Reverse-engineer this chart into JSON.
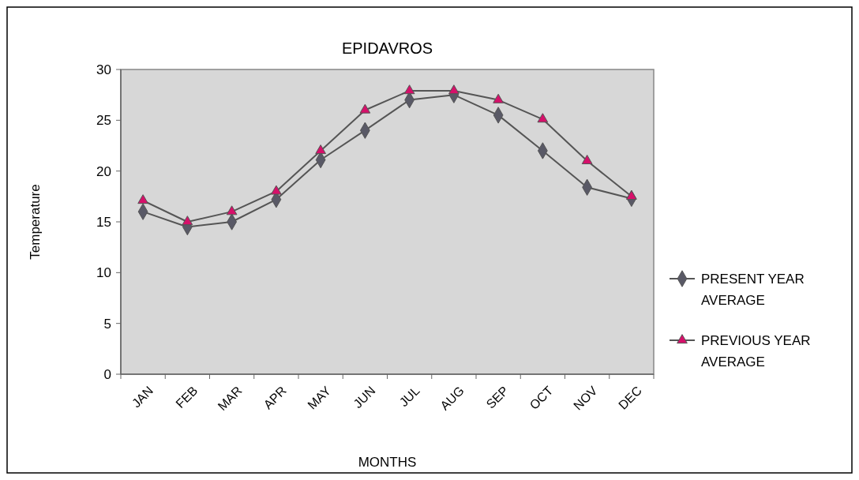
{
  "chart_data": {
    "type": "line",
    "title": "EPIDAVROS",
    "xlabel": "MONTHS",
    "ylabel": "Temperature",
    "categories": [
      "JAN",
      "FEB",
      "MAR",
      "APR",
      "MAY",
      "JUN",
      "JUL",
      "AUG",
      "SEP",
      "OCT",
      "NOV",
      "DEC"
    ],
    "series": [
      {
        "name": "PRESENT YEAR AVERAGE",
        "color": "#595966",
        "marker": "diamond",
        "values": [
          16,
          14.5,
          15,
          17.2,
          21.1,
          24,
          27,
          27.5,
          25.5,
          22,
          18.4,
          17.3
        ]
      },
      {
        "name": "PREVIOUS YEAR AVERAGE",
        "color": "#d6106a",
        "marker": "triangle",
        "values": [
          17.1,
          15,
          16,
          18,
          22,
          26,
          27.9,
          27.9,
          27,
          25.1,
          21,
          17.5
        ]
      }
    ],
    "ylim": [
      0,
      30
    ],
    "yticks": [
      0,
      5,
      10,
      15,
      20,
      25,
      30
    ],
    "grid": false,
    "legend": "right"
  }
}
